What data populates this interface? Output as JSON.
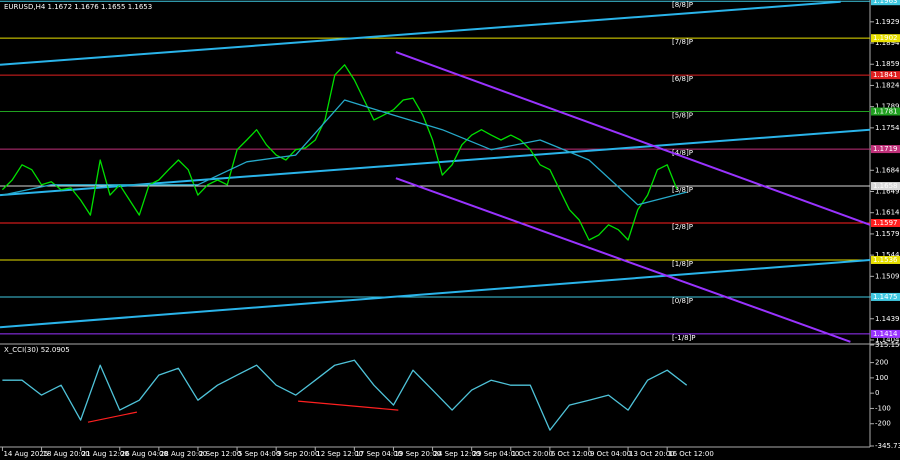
{
  "chart_data": [
    {
      "type": "line",
      "title": "EURUSD,H4 1.1672 1.1676 1.1655 1.1653",
      "xlim": [
        -1,
        355
      ],
      "ylim": [
        1.1399,
        1.1965
      ],
      "yticks": [
        1.1929,
        1.1894,
        1.1859,
        1.1824,
        1.1789,
        1.1754,
        1.1719,
        1.1684,
        1.1649,
        1.1614,
        1.1579,
        1.1544,
        1.1509,
        1.1475,
        1.1439,
        1.1404
      ],
      "series": [
        {
          "color": "#00e000",
          "x": [
            0,
            4,
            8,
            12,
            16,
            20,
            24,
            28,
            32,
            36,
            40,
            44,
            48,
            52,
            56,
            60,
            64,
            68,
            72,
            76,
            80,
            84,
            88,
            92,
            96,
            100,
            104,
            108,
            112,
            116,
            120,
            124,
            128,
            132,
            136,
            140,
            144,
            148,
            152,
            156,
            160,
            164,
            168,
            172,
            176,
            180,
            184,
            188,
            192,
            196,
            200,
            204,
            208,
            212,
            216,
            220,
            224,
            228,
            232,
            236,
            240,
            244,
            248,
            252,
            256,
            260,
            264,
            268,
            272,
            276
          ],
          "values": [
            1.1652,
            1.1668,
            1.1693,
            1.1685,
            1.166,
            1.1665,
            1.1652,
            1.1655,
            1.1635,
            1.161,
            1.1701,
            1.1643,
            1.166,
            1.1635,
            1.161,
            1.166,
            1.1668,
            1.1685,
            1.1701,
            1.1685,
            1.1643,
            1.166,
            1.1668,
            1.166,
            1.1718,
            1.1734,
            1.1751,
            1.1726,
            1.1709,
            1.1701,
            1.1718,
            1.1721,
            1.1734,
            1.1767,
            1.1841,
            1.1858,
            1.1833,
            1.18,
            1.1767,
            1.1775,
            1.1784,
            1.18,
            1.1803,
            1.1775,
            1.1734,
            1.1676,
            1.1693,
            1.1726,
            1.1742,
            1.1751,
            1.1742,
            1.1734,
            1.1742,
            1.1734,
            1.1718,
            1.1693,
            1.1685,
            1.1652,
            1.1619,
            1.1602,
            1.1569,
            1.1577,
            1.1594,
            1.1586,
            1.1569,
            1.1619,
            1.1643,
            1.1685,
            1.1693,
            1.1653
          ]
        },
        {
          "color": "#26a9c9",
          "x": [
            0,
            20,
            40,
            60,
            80,
            100,
            120,
            140,
            160,
            180,
            200,
            220,
            240,
            260,
            280
          ],
          "values": [
            1.1643,
            1.166,
            1.166,
            1.166,
            1.166,
            1.1698,
            1.1709,
            1.18,
            1.1775,
            1.1751,
            1.1718,
            1.1734,
            1.1701,
            1.1627,
            1.1648
          ]
        }
      ],
      "trend_lines": [
        {
          "color": "#2ab4ea",
          "x": [
            -1,
            343
          ],
          "values": [
            1.1858,
            1.1962
          ]
        },
        {
          "color": "#2ab4ea",
          "x": [
            -1,
            355
          ],
          "values": [
            1.1643,
            1.1751
          ]
        },
        {
          "color": "#2ab4ea",
          "x": [
            -1,
            355
          ],
          "values": [
            1.1425,
            1.1536
          ]
        },
        {
          "color": "#9933ff",
          "x": [
            161,
            355
          ],
          "values": [
            1.1879,
            1.1594
          ]
        },
        {
          "color": "#9933ff",
          "x": [
            161,
            347
          ],
          "values": [
            1.1671,
            1.1401
          ]
        }
      ],
      "levels": [
        {
          "label": "[8/8]P",
          "value": 1.1963,
          "color": "#40c8e0"
        },
        {
          "label": "[7/8]P",
          "value": 1.1902,
          "color": "#e8e000"
        },
        {
          "label": "[6/8]P",
          "value": 1.1841,
          "color": "#e02020"
        },
        {
          "label": "[5/8]P",
          "value": 1.1781,
          "color": "#20a020"
        },
        {
          "label": "[4/8]P",
          "value": 1.1719,
          "color": "#c0307a"
        },
        {
          "label": "[3/8]P",
          "value": 1.1658,
          "color": "#d8d8d8"
        },
        {
          "label": "[2/8]P",
          "value": 1.1597,
          "color": "#ff2020"
        },
        {
          "label": "[1/8]P",
          "value": 1.1536,
          "color": "#e8e000"
        },
        {
          "label": "[0/8]P",
          "value": 1.1475,
          "color": "#40c8e0"
        },
        {
          "label": "[-1/8]P",
          "value": 1.1414,
          "color": "#9933ff"
        }
      ]
    },
    {
      "type": "line",
      "title": "X_CCI(30) 52.0905",
      "xlim": [
        -1,
        355
      ],
      "ylim": [
        -345.7354,
        315.1542
      ],
      "yticks": [
        315.1542,
        200,
        100,
        0,
        -100,
        -200,
        -345.7354
      ],
      "xticks": [
        {
          "value": 0,
          "label": "14 Aug 2025"
        },
        {
          "value": 16,
          "label": "18 Aug 20:00"
        },
        {
          "value": 32,
          "label": "21 Aug 12:00"
        },
        {
          "value": 48,
          "label": "26 Aug 04:00"
        },
        {
          "value": 64,
          "label": "28 Aug 20:00"
        },
        {
          "value": 80,
          "label": "2 Sep 12:00"
        },
        {
          "value": 96,
          "label": "5 Sep 04:00"
        },
        {
          "value": 112,
          "label": "9 Sep 20:00"
        },
        {
          "value": 128,
          "label": "12 Sep 12:00"
        },
        {
          "value": 144,
          "label": "17 Sep 04:00"
        },
        {
          "value": 160,
          "label": "19 Sep 20:00"
        },
        {
          "value": 176,
          "label": "24 Sep 12:00"
        },
        {
          "value": 192,
          "label": "29 Sep 04:00"
        },
        {
          "value": 208,
          "label": "1 Oct 20:00"
        },
        {
          "value": 224,
          "label": "6 Oct 12:00"
        },
        {
          "value": 240,
          "label": "9 Oct 04:00"
        },
        {
          "value": 256,
          "label": "13 Oct 20:00"
        },
        {
          "value": 272,
          "label": "16 Oct 12:00"
        }
      ],
      "series": [
        {
          "color": "#4fc3d9",
          "x": [
            0,
            8,
            16,
            24,
            32,
            40,
            48,
            56,
            64,
            72,
            80,
            88,
            96,
            104,
            112,
            120,
            128,
            136,
            144,
            152,
            160,
            168,
            176,
            184,
            192,
            200,
            208,
            216,
            224,
            232,
            240,
            248,
            256,
            264,
            272,
            280
          ],
          "values": [
            85,
            85,
            -13,
            52,
            -176,
            183,
            -111,
            -46,
            118,
            163,
            -46,
            52,
            118,
            183,
            52,
            -13,
            85,
            183,
            216,
            52,
            -78,
            150,
            20,
            -111,
            20,
            85,
            52,
            52,
            -242,
            -78,
            -46,
            -13,
            -111,
            85,
            150,
            52.0905
          ]
        }
      ],
      "trend_lines": [
        {
          "color": "#ff2020",
          "x": [
            35,
            55
          ],
          "values": [
            -190,
            -124
          ]
        },
        {
          "color": "#ff2020",
          "x": [
            121,
            162
          ],
          "values": [
            -52,
            -111
          ]
        }
      ]
    }
  ]
}
